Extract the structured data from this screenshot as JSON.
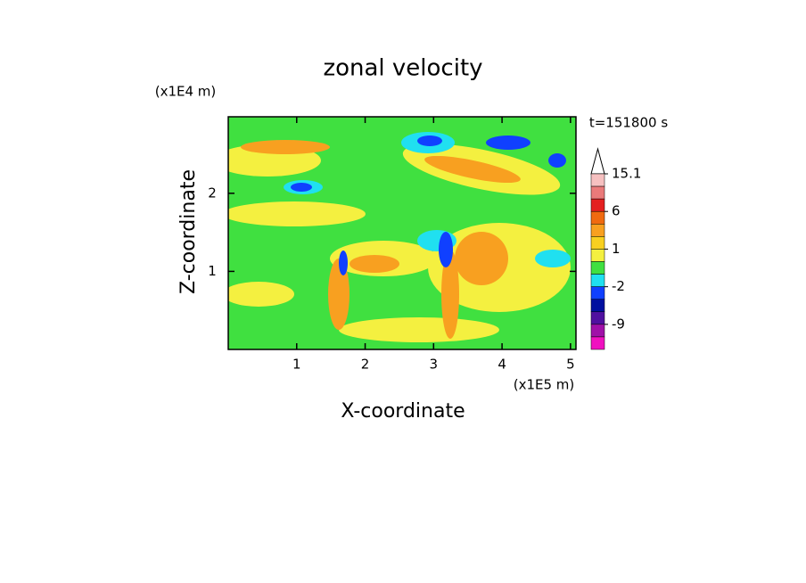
{
  "chart_data": {
    "type": "contour",
    "title": "zonal velocity",
    "x_label": "X-coordinate",
    "y_label": "Z-coordinate",
    "x_unit": "(x1E5 m)",
    "y_unit": "(x1E4 m)",
    "annotation": "t=151800 s",
    "xlim": [
      0,
      5.08
    ],
    "xticks": [
      1,
      2,
      3,
      4,
      5
    ],
    "ylim": [
      0,
      2.98
    ],
    "yticks": [
      1,
      2
    ],
    "colorbar": {
      "levels": [
        15.1,
        12,
        9,
        6,
        3,
        2,
        1,
        0,
        -1,
        -2,
        -4,
        -6,
        -9,
        -12,
        -15
      ],
      "colors": [
        "#f6c0c0",
        "#ea7a7a",
        "#e42020",
        "#f06a10",
        "#f8a020",
        "#f8d020",
        "#f4f040",
        "#40e040",
        "#20e0f0",
        "#1040ff",
        "#0010a0",
        "#5010a0",
        "#a010a8",
        "#f010c0"
      ],
      "ticks": [
        15.1,
        6,
        1,
        -2,
        -9
      ]
    }
  }
}
